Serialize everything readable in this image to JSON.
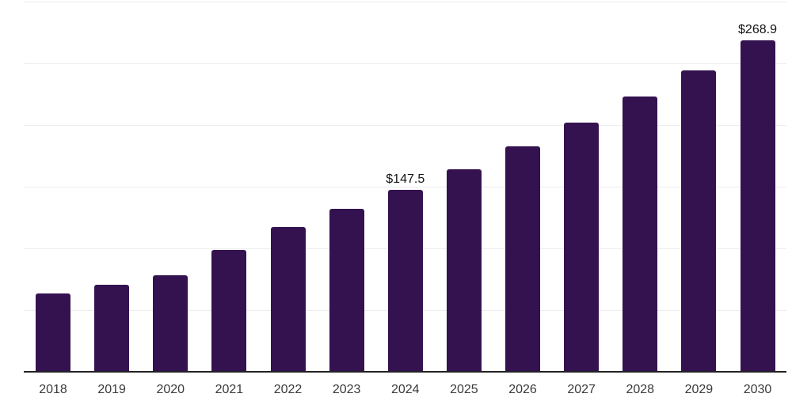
{
  "chart_data": {
    "type": "bar",
    "title": "",
    "xlabel": "",
    "ylabel": "",
    "categories": [
      "2018",
      "2019",
      "2020",
      "2021",
      "2022",
      "2023",
      "2024",
      "2025",
      "2026",
      "2027",
      "2028",
      "2029",
      "2030"
    ],
    "values": [
      63.2,
      70.2,
      78.5,
      99.0,
      117.5,
      132.2,
      147.5,
      164.1,
      182.6,
      201.8,
      222.8,
      244.5,
      268.9
    ],
    "data_labels": [
      {
        "category": "2024",
        "text": "$147.5"
      },
      {
        "category": "2030",
        "text": "$268.9"
      }
    ],
    "ylim": [
      0,
      300
    ],
    "grid_interval": 50,
    "grid": "horizontal",
    "legend_position": "none",
    "y_axis_tick_labels": "hidden",
    "colors": {
      "bar": "#341250",
      "gridline": "#ededed",
      "axis_line": "#222222",
      "tick_label": "#3a3a3a",
      "data_label": "#141414",
      "background": "#ffffff"
    }
  }
}
